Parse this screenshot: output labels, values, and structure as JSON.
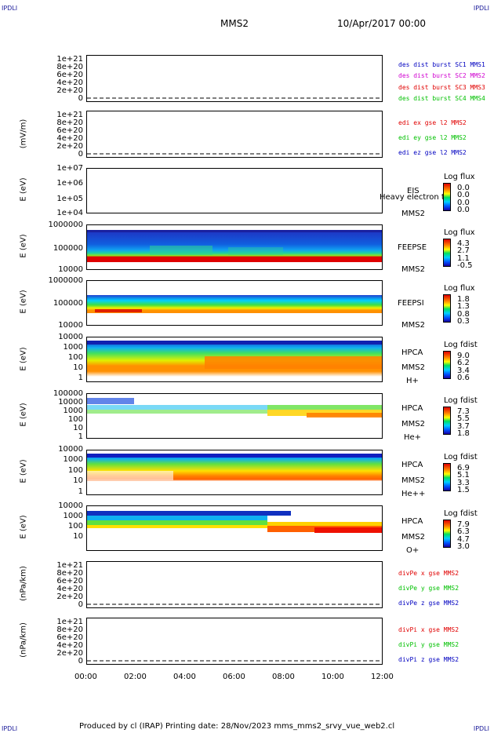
{
  "corner": {
    "left": "IPDLI",
    "right": "IPDLI"
  },
  "header": {
    "title": "MMS2",
    "datetime": "10/Apr/2017 00:00"
  },
  "footer": {
    "text": "Produced by cl (IRAP)   Printing date: 28/Nov/2023   mms_mms2_srvy_vue_web2.cl"
  },
  "xaxis": {
    "ticks": [
      "00:00",
      "02:00",
      "04:00",
      "06:00",
      "08:00",
      "10:00",
      "12:00"
    ]
  },
  "colors": {
    "red": "#e00000",
    "green": "#00c000",
    "blue": "#0000c0",
    "magenta": "#d000d0"
  },
  "chart_data": [
    {
      "type": "line",
      "ylabel": "",
      "yticks": [
        "1e+21",
        "8e+20",
        "6e+20",
        "4e+20",
        "2e+20",
        "0"
      ],
      "series": [
        {
          "name": "des dist burst SC1 MMS1",
          "color": "#0000c0"
        },
        {
          "name": "des dist burst SC2 MMS2",
          "color": "#d000d0"
        },
        {
          "name": "des dist burst SC3 MMS3",
          "color": "#e00000"
        },
        {
          "name": "des dist burst SC4 MMS4",
          "color": "#00c000"
        }
      ]
    },
    {
      "type": "line",
      "ylabel": "(mV/m)",
      "yticks": [
        "1e+21",
        "8e+20",
        "6e+20",
        "4e+20",
        "2e+20",
        "0"
      ],
      "series": [
        {
          "name": "edi ex gse l2 MMS2",
          "color": "#e00000"
        },
        {
          "name": "edi ey gse l2 MMS2",
          "color": "#00c000"
        },
        {
          "name": "edi ez gse l2 MMS2",
          "color": "#0000c0"
        }
      ]
    },
    {
      "type": "heatmap",
      "ylabel": "E (eV)",
      "yticks": [
        "1e+07",
        "1e+06",
        "1e+05",
        "1e+04"
      ],
      "inst": [
        "EIS",
        "MMS2"
      ],
      "overlay": "Heavy electron to",
      "cbar": {
        "title": "Log flux",
        "values": [
          "0.0",
          "0.0",
          "0.0",
          "0.0"
        ]
      }
    },
    {
      "type": "heatmap",
      "ylabel": "E (eV)",
      "yticks": [
        "1000000",
        "100000",
        "10000"
      ],
      "inst": [
        "FEEPSE",
        "MMS2"
      ],
      "cbar": {
        "title": "Log flux",
        "values": [
          "4.3",
          "2.7",
          "1.1",
          "-0.5"
        ]
      }
    },
    {
      "type": "heatmap",
      "ylabel": "E (eV)",
      "yticks": [
        "1000000",
        "100000",
        "10000"
      ],
      "inst": [
        "FEEPSI",
        "MMS2"
      ],
      "cbar": {
        "title": "Log flux",
        "values": [
          "1.8",
          "1.3",
          "0.8",
          "0.3"
        ]
      }
    },
    {
      "type": "heatmap",
      "ylabel": "E (eV)",
      "yticks": [
        "10000",
        "1000",
        "100",
        "10",
        "1"
      ],
      "inst": [
        "HPCA",
        "MMS2",
        "H+"
      ],
      "cbar": {
        "title": "Log fdist",
        "values": [
          "9.0",
          "6.2",
          "3.4",
          "0.6"
        ]
      }
    },
    {
      "type": "heatmap",
      "ylabel": "E (eV)",
      "yticks": [
        "100000",
        "10000",
        "1000",
        "100",
        "10",
        "1"
      ],
      "inst": [
        "HPCA",
        "MMS2",
        "He+"
      ],
      "cbar": {
        "title": "Log fdist",
        "values": [
          "7.3",
          "5.5",
          "3.7",
          "1.8"
        ]
      }
    },
    {
      "type": "heatmap",
      "ylabel": "E (eV)",
      "yticks": [
        "10000",
        "1000",
        "100",
        "10",
        "1"
      ],
      "inst": [
        "HPCA",
        "MMS2",
        "He++"
      ],
      "cbar": {
        "title": "Log fdist",
        "values": [
          "6.9",
          "5.1",
          "3.3",
          "1.5"
        ]
      }
    },
    {
      "type": "heatmap",
      "ylabel": "E (eV)",
      "yticks": [
        "10000",
        "1000",
        "100",
        "10"
      ],
      "inst": [
        "HPCA",
        "MMS2",
        "O+"
      ],
      "cbar": {
        "title": "Log fdist",
        "values": [
          "7.9",
          "6.3",
          "4.7",
          "3.0"
        ]
      }
    },
    {
      "type": "line",
      "ylabel": "(nPa/km)",
      "yticks": [
        "1e+21",
        "8e+20",
        "6e+20",
        "4e+20",
        "2e+20",
        "0"
      ],
      "series": [
        {
          "name": "divPe x gse MMS2",
          "color": "#e00000"
        },
        {
          "name": "divPe y gse MMS2",
          "color": "#00c000"
        },
        {
          "name": "divPe z gse MMS2",
          "color": "#0000c0"
        }
      ]
    },
    {
      "type": "line",
      "ylabel": "(nPa/km)",
      "yticks": [
        "1e+21",
        "8e+20",
        "6e+20",
        "4e+20",
        "2e+20",
        "0"
      ],
      "series": [
        {
          "name": "divPi x gse MMS2",
          "color": "#e00000"
        },
        {
          "name": "divPi y gse MMS2",
          "color": "#00c000"
        },
        {
          "name": "divPi z gse MMS2",
          "color": "#0000c0"
        }
      ]
    }
  ]
}
